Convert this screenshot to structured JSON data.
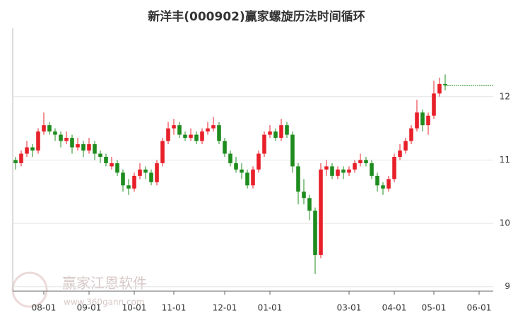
{
  "chart_data": {
    "type": "candlestick",
    "title": "新洋丰(000902)赢家螺旋历法时间循环",
    "watermark": [
      "赢家江恩软件",
      "www.360gann.com"
    ],
    "up_color": "#e8202a",
    "down_color": "#1e8c1e",
    "last_line_color": "#1e8c1e",
    "grid": true,
    "ylim": [
      8.93,
      13.08
    ],
    "yticks": [
      9,
      10,
      11,
      12
    ],
    "categories": [
      null,
      null,
      null,
      null,
      null,
      "08-01",
      null,
      null,
      null,
      null,
      null,
      null,
      null,
      "09-01",
      null,
      null,
      null,
      null,
      null,
      null,
      null,
      "10-01",
      null,
      null,
      null,
      null,
      null,
      null,
      "11-01",
      null,
      null,
      null,
      null,
      null,
      null,
      null,
      null,
      "12-01",
      null,
      null,
      null,
      null,
      null,
      null,
      null,
      "01-01",
      null,
      null,
      null,
      null,
      null,
      null,
      null,
      null,
      null,
      null,
      null,
      null,
      null,
      "03-01",
      null,
      null,
      null,
      null,
      null,
      null,
      null,
      "04-01",
      null,
      null,
      null,
      null,
      null,
      null,
      "05-01",
      null,
      null,
      null,
      null,
      null,
      null,
      null,
      "06-01",
      null,
      null
    ],
    "ohlc": [
      [
        11.0,
        11.05,
        10.85,
        10.95
      ],
      [
        10.95,
        11.15,
        10.9,
        11.1
      ],
      [
        11.1,
        11.3,
        11.05,
        11.2
      ],
      [
        11.2,
        11.25,
        11.05,
        11.15
      ],
      [
        11.15,
        11.5,
        11.1,
        11.45
      ],
      [
        11.45,
        11.75,
        11.4,
        11.55
      ],
      [
        11.55,
        11.6,
        11.4,
        11.45
      ],
      [
        11.45,
        11.5,
        11.3,
        11.4
      ],
      [
        11.4,
        11.45,
        11.2,
        11.3
      ],
      [
        11.3,
        11.45,
        11.25,
        11.35
      ],
      [
        11.35,
        11.4,
        11.1,
        11.2
      ],
      [
        11.2,
        11.35,
        11.15,
        11.25
      ],
      [
        11.25,
        11.3,
        11.05,
        11.15
      ],
      [
        11.15,
        11.35,
        11.1,
        11.25
      ],
      [
        11.25,
        11.3,
        11.0,
        11.1
      ],
      [
        11.1,
        11.15,
        10.95,
        11.05
      ],
      [
        11.05,
        11.1,
        10.9,
        10.95
      ],
      [
        10.9,
        11.05,
        10.85,
        10.95
      ],
      [
        10.95,
        11.0,
        10.75,
        10.8
      ],
      [
        10.8,
        10.85,
        10.5,
        10.6
      ],
      [
        10.6,
        10.7,
        10.45,
        10.55
      ],
      [
        10.55,
        10.8,
        10.5,
        10.75
      ],
      [
        10.75,
        10.95,
        10.7,
        10.85
      ],
      [
        10.85,
        10.9,
        10.7,
        10.8
      ],
      [
        10.8,
        10.85,
        10.6,
        10.65
      ],
      [
        10.65,
        11.0,
        10.6,
        10.95
      ],
      [
        10.95,
        11.35,
        10.9,
        11.3
      ],
      [
        11.3,
        11.6,
        11.25,
        11.5
      ],
      [
        11.5,
        11.65,
        11.4,
        11.55
      ],
      [
        11.55,
        11.6,
        11.35,
        11.4
      ],
      [
        11.4,
        11.45,
        11.3,
        11.35
      ],
      [
        11.35,
        11.5,
        11.3,
        11.4
      ],
      [
        11.4,
        11.45,
        11.25,
        11.3
      ],
      [
        11.3,
        11.5,
        11.25,
        11.45
      ],
      [
        11.45,
        11.6,
        11.4,
        11.5
      ],
      [
        11.5,
        11.68,
        11.45,
        11.55
      ],
      [
        11.55,
        11.6,
        11.25,
        11.3
      ],
      [
        11.3,
        11.35,
        11.05,
        11.1
      ],
      [
        11.1,
        11.15,
        10.9,
        10.95
      ],
      [
        10.95,
        11.05,
        10.8,
        10.85
      ],
      [
        10.85,
        10.95,
        10.7,
        10.8
      ],
      [
        10.8,
        10.85,
        10.55,
        10.6
      ],
      [
        10.6,
        10.9,
        10.55,
        10.85
      ],
      [
        10.85,
        11.15,
        10.8,
        11.1
      ],
      [
        11.1,
        11.45,
        11.05,
        11.4
      ],
      [
        11.4,
        11.55,
        11.35,
        11.45
      ],
      [
        11.45,
        11.5,
        11.3,
        11.35
      ],
      [
        11.35,
        11.65,
        11.3,
        11.55
      ],
      [
        11.55,
        11.6,
        11.35,
        11.4
      ],
      [
        11.4,
        11.45,
        10.8,
        10.9
      ],
      [
        10.9,
        10.95,
        10.3,
        10.5
      ],
      [
        10.5,
        10.7,
        10.3,
        10.4
      ],
      [
        10.4,
        10.45,
        10.05,
        10.2
      ],
      [
        10.2,
        10.25,
        9.2,
        9.5
      ],
      [
        9.5,
        10.95,
        9.45,
        10.85
      ],
      [
        10.85,
        11.0,
        10.75,
        10.9
      ],
      [
        10.9,
        10.95,
        10.7,
        10.75
      ],
      [
        10.75,
        10.9,
        10.7,
        10.85
      ],
      [
        10.85,
        10.9,
        10.7,
        10.8
      ],
      [
        10.8,
        10.9,
        10.75,
        10.85
      ],
      [
        10.85,
        11.0,
        10.8,
        10.95
      ],
      [
        10.95,
        11.1,
        10.9,
        11.0
      ],
      [
        11.0,
        11.05,
        10.9,
        10.95
      ],
      [
        10.95,
        11.0,
        10.7,
        10.75
      ],
      [
        10.75,
        10.8,
        10.5,
        10.6
      ],
      [
        10.6,
        10.65,
        10.45,
        10.55
      ],
      [
        10.55,
        10.75,
        10.5,
        10.7
      ],
      [
        10.7,
        11.1,
        10.65,
        11.05
      ],
      [
        11.05,
        11.25,
        11.0,
        11.15
      ],
      [
        11.15,
        11.35,
        11.1,
        11.3
      ],
      [
        11.3,
        11.55,
        11.25,
        11.5
      ],
      [
        11.5,
        11.95,
        11.45,
        11.75
      ],
      [
        11.75,
        11.8,
        11.45,
        11.55
      ],
      [
        11.55,
        11.75,
        11.4,
        11.7
      ],
      [
        11.7,
        12.25,
        11.65,
        12.05
      ],
      [
        12.05,
        12.3,
        12.0,
        12.2
      ],
      [
        12.2,
        12.35,
        12.1,
        12.18
      ],
      null,
      null,
      null,
      null,
      null,
      null,
      null,
      null
    ]
  }
}
